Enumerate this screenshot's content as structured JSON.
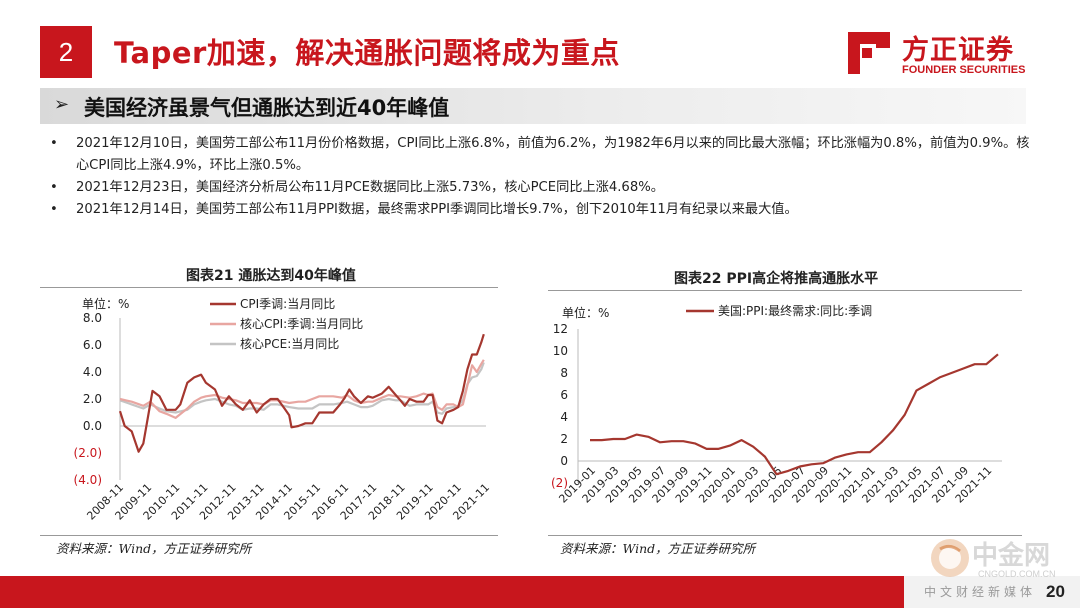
{
  "header": {
    "section_number": "2",
    "title": "Taper加速，解决通胀问题将成为重点"
  },
  "logo": {
    "cn": "方正证券",
    "en": "FOUNDER SECURITIES"
  },
  "subtitle": {
    "arrow": "➢",
    "text": "美国经济虽景气但通胀达到近40年峰值"
  },
  "bullets": [
    {
      "dot": "•",
      "text": "2021年12月10日，美国劳工部公布11月份价格数据，CPI同比上涨6.8%，前值为6.2%，为1982年6月以来的同比最大涨幅；环比涨幅为0.8%，前值为0.9%。核心CPI同比上涨4.9%，环比上涨0.5%。"
    },
    {
      "dot": "•",
      "text": "2021年12月23日，美国经济分析局公布11月PCE数据同比上涨5.73%，核心PCE同比上涨4.68%。"
    },
    {
      "dot": "•",
      "text": "2021年12月14日，美国劳工部公布11月PPI数据，最终需求PPI季调同比增长9.7%，创下2010年11月有纪录以来最大值。"
    }
  ],
  "chart_data": [
    {
      "type": "line",
      "title": "图表21 通胀达到40年峰值",
      "unit_label": "单位：%",
      "source": "资料来源：Wind，方正证券研究所",
      "y_ticks": [
        "8.0",
        "6.0",
        "4.0",
        "2.0",
        "0.0",
        "(2.0)",
        "(4.0)"
      ],
      "ylim": [
        -4,
        8
      ],
      "x_ticks": [
        "2008-11",
        "2009-11",
        "2010-11",
        "2011-11",
        "2012-11",
        "2013-11",
        "2014-11",
        "2015-11",
        "2016-11",
        "2017-11",
        "2018-11",
        "2019-11",
        "2020-11",
        "2021-11"
      ],
      "xlim": [
        2008.83,
        2022.0
      ],
      "grid": false,
      "legend_position": "top",
      "series": [
        {
          "name": "CPI季调:当月同比",
          "color": "#a5372f",
          "points": [
            [
              2008.83,
              1.1
            ],
            [
              2009.0,
              0.0
            ],
            [
              2009.25,
              -0.4
            ],
            [
              2009.5,
              -1.9
            ],
            [
              2009.67,
              -1.3
            ],
            [
              2009.83,
              0.6
            ],
            [
              2010.0,
              2.6
            ],
            [
              2010.25,
              2.2
            ],
            [
              2010.5,
              1.2
            ],
            [
              2010.83,
              1.2
            ],
            [
              2011.0,
              1.6
            ],
            [
              2011.25,
              3.2
            ],
            [
              2011.5,
              3.6
            ],
            [
              2011.75,
              3.8
            ],
            [
              2011.92,
              3.2
            ],
            [
              2012.25,
              2.7
            ],
            [
              2012.5,
              1.5
            ],
            [
              2012.75,
              2.2
            ],
            [
              2013.0,
              1.6
            ],
            [
              2013.25,
              1.2
            ],
            [
              2013.5,
              1.9
            ],
            [
              2013.75,
              1.0
            ],
            [
              2014.0,
              1.6
            ],
            [
              2014.25,
              2.0
            ],
            [
              2014.5,
              2.0
            ],
            [
              2014.75,
              1.3
            ],
            [
              2014.92,
              0.8
            ],
            [
              2015.0,
              -0.1
            ],
            [
              2015.25,
              0.0
            ],
            [
              2015.5,
              0.2
            ],
            [
              2015.75,
              0.2
            ],
            [
              2016.0,
              1.0
            ],
            [
              2016.25,
              1.0
            ],
            [
              2016.5,
              1.0
            ],
            [
              2016.75,
              1.6
            ],
            [
              2016.92,
              2.1
            ],
            [
              2017.08,
              2.7
            ],
            [
              2017.25,
              2.2
            ],
            [
              2017.5,
              1.7
            ],
            [
              2017.75,
              2.2
            ],
            [
              2017.92,
              2.1
            ],
            [
              2018.25,
              2.4
            ],
            [
              2018.5,
              2.9
            ],
            [
              2018.75,
              2.3
            ],
            [
              2018.92,
              1.9
            ],
            [
              2019.08,
              1.5
            ],
            [
              2019.25,
              2.0
            ],
            [
              2019.5,
              1.8
            ],
            [
              2019.75,
              1.8
            ],
            [
              2019.92,
              2.3
            ],
            [
              2020.08,
              2.3
            ],
            [
              2020.25,
              0.4
            ],
            [
              2020.42,
              0.2
            ],
            [
              2020.58,
              1.0
            ],
            [
              2020.83,
              1.2
            ],
            [
              2021.0,
              1.4
            ],
            [
              2021.17,
              2.6
            ],
            [
              2021.33,
              4.2
            ],
            [
              2021.5,
              5.3
            ],
            [
              2021.67,
              5.3
            ],
            [
              2021.83,
              6.2
            ],
            [
              2021.92,
              6.8
            ]
          ]
        },
        {
          "name": "核心CPI:季调:当月同比",
          "color": "#e8a6a1",
          "points": [
            [
              2008.83,
              2.0
            ],
            [
              2009.25,
              1.8
            ],
            [
              2009.67,
              1.5
            ],
            [
              2009.92,
              1.8
            ],
            [
              2010.25,
              1.1
            ],
            [
              2010.5,
              0.9
            ],
            [
              2010.83,
              0.6
            ],
            [
              2011.25,
              1.3
            ],
            [
              2011.5,
              1.8
            ],
            [
              2011.75,
              2.1
            ],
            [
              2011.92,
              2.2
            ],
            [
              2012.25,
              2.3
            ],
            [
              2012.5,
              2.1
            ],
            [
              2012.75,
              2.0
            ],
            [
              2013.0,
              1.9
            ],
            [
              2013.25,
              1.7
            ],
            [
              2013.5,
              1.7
            ],
            [
              2013.75,
              1.7
            ],
            [
              2014.0,
              1.6
            ],
            [
              2014.25,
              1.9
            ],
            [
              2014.5,
              1.9
            ],
            [
              2014.92,
              1.7
            ],
            [
              2015.25,
              1.8
            ],
            [
              2015.5,
              1.8
            ],
            [
              2015.75,
              2.0
            ],
            [
              2016.0,
              2.2
            ],
            [
              2016.25,
              2.2
            ],
            [
              2016.5,
              2.2
            ],
            [
              2016.83,
              2.1
            ],
            [
              2017.0,
              2.3
            ],
            [
              2017.25,
              1.9
            ],
            [
              2017.5,
              1.7
            ],
            [
              2017.75,
              1.8
            ],
            [
              2017.92,
              1.8
            ],
            [
              2018.25,
              2.1
            ],
            [
              2018.5,
              2.3
            ],
            [
              2018.75,
              2.2
            ],
            [
              2018.92,
              2.2
            ],
            [
              2019.25,
              2.1
            ],
            [
              2019.5,
              2.2
            ],
            [
              2019.75,
              2.4
            ],
            [
              2019.92,
              2.3
            ],
            [
              2020.08,
              2.4
            ],
            [
              2020.25,
              1.4
            ],
            [
              2020.42,
              1.2
            ],
            [
              2020.58,
              1.6
            ],
            [
              2020.83,
              1.6
            ],
            [
              2021.0,
              1.4
            ],
            [
              2021.17,
              1.6
            ],
            [
              2021.33,
              3.0
            ],
            [
              2021.5,
              4.5
            ],
            [
              2021.67,
              4.0
            ],
            [
              2021.83,
              4.6
            ],
            [
              2021.92,
              4.9
            ]
          ]
        },
        {
          "name": "核心PCE:当月同比",
          "color": "#c4c4c4",
          "points": [
            [
              2008.83,
              1.9
            ],
            [
              2009.25,
              1.6
            ],
            [
              2009.67,
              1.3
            ],
            [
              2009.92,
              1.6
            ],
            [
              2010.25,
              1.3
            ],
            [
              2010.5,
              1.1
            ],
            [
              2010.83,
              1.0
            ],
            [
              2011.25,
              1.2
            ],
            [
              2011.5,
              1.6
            ],
            [
              2011.75,
              1.8
            ],
            [
              2011.92,
              1.9
            ],
            [
              2012.25,
              2.0
            ],
            [
              2012.5,
              1.8
            ],
            [
              2012.75,
              1.6
            ],
            [
              2013.0,
              1.5
            ],
            [
              2013.25,
              1.2
            ],
            [
              2013.5,
              1.3
            ],
            [
              2013.75,
              1.3
            ],
            [
              2014.0,
              1.2
            ],
            [
              2014.25,
              1.6
            ],
            [
              2014.5,
              1.6
            ],
            [
              2014.92,
              1.4
            ],
            [
              2015.25,
              1.3
            ],
            [
              2015.5,
              1.3
            ],
            [
              2015.75,
              1.3
            ],
            [
              2016.0,
              1.6
            ],
            [
              2016.25,
              1.6
            ],
            [
              2016.5,
              1.6
            ],
            [
              2016.83,
              1.7
            ],
            [
              2017.0,
              1.8
            ],
            [
              2017.25,
              1.6
            ],
            [
              2017.5,
              1.4
            ],
            [
              2017.75,
              1.4
            ],
            [
              2017.92,
              1.5
            ],
            [
              2018.25,
              1.9
            ],
            [
              2018.5,
              2.0
            ],
            [
              2018.75,
              1.9
            ],
            [
              2018.92,
              1.9
            ],
            [
              2019.25,
              1.5
            ],
            [
              2019.5,
              1.6
            ],
            [
              2019.75,
              1.6
            ],
            [
              2019.92,
              1.6
            ],
            [
              2020.08,
              1.8
            ],
            [
              2020.25,
              1.0
            ],
            [
              2020.42,
              0.9
            ],
            [
              2020.58,
              1.3
            ],
            [
              2020.83,
              1.4
            ],
            [
              2021.0,
              1.5
            ],
            [
              2021.17,
              1.9
            ],
            [
              2021.33,
              3.1
            ],
            [
              2021.5,
              3.6
            ],
            [
              2021.67,
              3.7
            ],
            [
              2021.83,
              4.2
            ],
            [
              2021.92,
              4.7
            ]
          ]
        }
      ]
    },
    {
      "type": "line",
      "title": "图表22 PPI高企将推高通胀水平",
      "unit_label": "单位：%",
      "source": "资料来源：Wind，方正证券研究所",
      "y_ticks": [
        "12",
        "10",
        "8",
        "6",
        "4",
        "2",
        "0",
        "(2)"
      ],
      "ylim": [
        -2,
        12
      ],
      "x_ticks": [
        "2019-01",
        "2019-03",
        "2019-05",
        "2019-07",
        "2019-09",
        "2019-11",
        "2020-01",
        "2020-03",
        "2020-05",
        "2020-07",
        "2020-09",
        "2020-11",
        "2021-01",
        "2021-03",
        "2021-05",
        "2021-07",
        "2021-09",
        "2021-11"
      ],
      "grid": false,
      "legend_position": "top",
      "series": [
        {
          "name": "美国:PPI:最终需求:同比:季调",
          "color": "#a5372f",
          "values": [
            1.9,
            1.9,
            2.0,
            2.0,
            2.4,
            2.2,
            1.7,
            1.8,
            1.8,
            1.6,
            1.1,
            1.1,
            1.4,
            1.9,
            1.3,
            0.4,
            -1.2,
            -0.9,
            -0.5,
            -0.3,
            -0.2,
            0.3,
            0.6,
            0.8,
            0.8,
            1.7,
            2.8,
            4.2,
            6.4,
            7.0,
            7.6,
            8.0,
            8.4,
            8.8,
            8.8,
            9.7
          ]
        }
      ]
    }
  ],
  "watermark": {
    "text": "中金网",
    "url": "CNGOLD.COM.CN",
    "tagline": "中文财经新媒体"
  },
  "page_number": "20"
}
